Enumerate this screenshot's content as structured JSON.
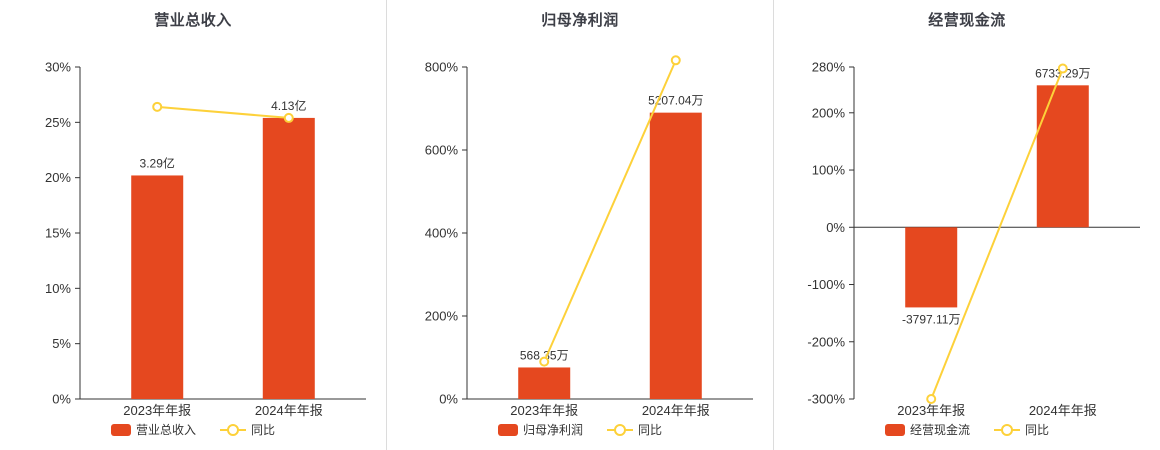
{
  "colors": {
    "bar": "#e5481f",
    "line": "#fdd13a",
    "axis": "#333333",
    "text": "#333333",
    "divider": "#dcdcdc",
    "background": "#ffffff"
  },
  "chart_data": [
    {
      "type": "bar+line",
      "title": "营业总收入",
      "categories": [
        "2023年年报",
        "2024年年报"
      ],
      "ylim": [
        0,
        30
      ],
      "y_ticks": [
        0,
        5,
        10,
        15,
        20,
        25,
        30
      ],
      "y_tick_suffix": "%",
      "grid": false,
      "legend_position": "bottom",
      "series": [
        {
          "name": "营业总收入",
          "type": "bar",
          "labels": [
            "3.29亿",
            "4.13亿"
          ],
          "values_pct": [
            20.2,
            25.4
          ]
        },
        {
          "name": "同比",
          "type": "line",
          "values_pct": [
            26.4,
            25.4
          ]
        }
      ]
    },
    {
      "type": "bar+line",
      "title": "归母净利润",
      "categories": [
        "2023年年报",
        "2024年年报"
      ],
      "ylim": [
        0,
        800
      ],
      "y_ticks": [
        0,
        200,
        400,
        600,
        800
      ],
      "y_tick_suffix": "%",
      "grid": false,
      "legend_position": "bottom",
      "series": [
        {
          "name": "归母净利润",
          "type": "bar",
          "labels": [
            "568.35万",
            "5207.04万"
          ],
          "values_pct": [
            76,
            690
          ]
        },
        {
          "name": "同比",
          "type": "line",
          "values_pct": [
            90,
            816.2
          ]
        }
      ]
    },
    {
      "type": "bar+line",
      "title": "经营现金流",
      "categories": [
        "2023年年报",
        "2024年年报"
      ],
      "ylim": [
        -300,
        280
      ],
      "y_ticks": [
        -300,
        -200,
        -100,
        0,
        100,
        200,
        280
      ],
      "y_tick_suffix": "%",
      "grid": false,
      "legend_position": "bottom",
      "series": [
        {
          "name": "经营现金流",
          "type": "bar",
          "labels": [
            "-3797.11万",
            "6733.29万"
          ],
          "values_pct": [
            -140,
            248
          ]
        },
        {
          "name": "同比",
          "type": "line",
          "values_pct": [
            -300,
            277.3
          ]
        }
      ]
    }
  ]
}
